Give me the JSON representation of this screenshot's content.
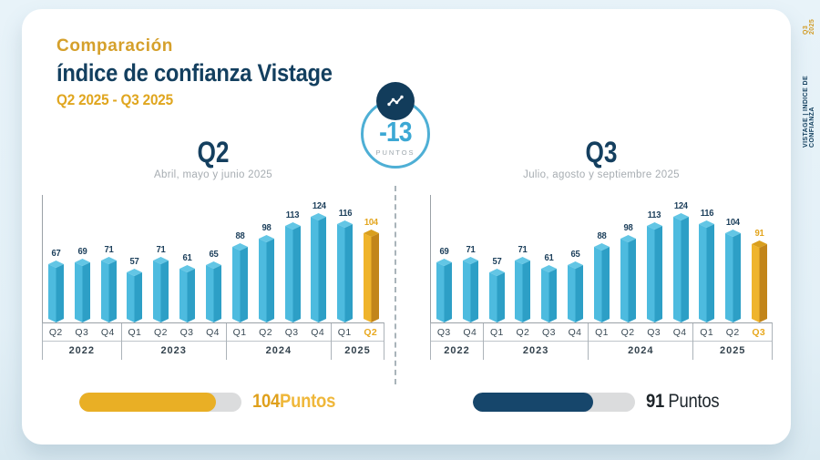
{
  "colors": {
    "background": "#E6F2F8",
    "navy": "#133F5F",
    "gold": "#E9AF25",
    "bar_blue_front": "#4DBBDF",
    "bar_blue_side": "#2D9FC6",
    "bar_blue_top": "#63C6E5",
    "bar_gold_front": "#EFB42C",
    "bar_gold_side": "#C2851A",
    "bar_gold_top": "#D99F1E",
    "badge_blue": "#3CA8D4",
    "track_gray": "#DBDCDD"
  },
  "header": {
    "kicker": "Comparación",
    "title": "índice de confianza Vistage",
    "subtitle": "Q2 2025 - Q3 2025"
  },
  "badge": {
    "delta": "-13",
    "unit": "PUNTOS",
    "icon": "trend-line-icon"
  },
  "side_label": {
    "main": "VISTAGE | INDICE DE CONFIANZA",
    "highlight": "Q3 2025"
  },
  "chart_data": [
    {
      "type": "bar",
      "title": "Q2",
      "subtitle": "Abril, mayo y junio 2025",
      "categories": [
        "Q2 2022",
        "Q3 2022",
        "Q4 2022",
        "Q1 2023",
        "Q2 2023",
        "Q3 2023",
        "Q4 2023",
        "Q1 2024",
        "Q2 2024",
        "Q3 2024",
        "Q4 2024",
        "Q1 2025",
        "Q2 2025"
      ],
      "values": [
        67,
        69,
        71,
        57,
        71,
        61,
        65,
        88,
        98,
        113,
        124,
        116,
        104
      ],
      "groups": [
        {
          "year": "2022",
          "quarters": [
            "Q2",
            "Q3",
            "Q4"
          ]
        },
        {
          "year": "2023",
          "quarters": [
            "Q1",
            "Q2",
            "Q3",
            "Q4"
          ]
        },
        {
          "year": "2024",
          "quarters": [
            "Q1",
            "Q2",
            "Q3",
            "Q4"
          ]
        },
        {
          "year": "2025",
          "quarters": [
            "Q1",
            "Q2"
          ]
        }
      ],
      "highlight_index": 12,
      "ylim": [
        0,
        130
      ],
      "grid": false,
      "summary": {
        "value": "104",
        "unit": "Puntos",
        "fill_pct": 84
      }
    },
    {
      "type": "bar",
      "title": "Q3",
      "subtitle": "Julio, agosto y septiembre 2025",
      "categories": [
        "Q3 2022",
        "Q4 2022",
        "Q1 2023",
        "Q2 2023",
        "Q3 2023",
        "Q4 2023",
        "Q1 2024",
        "Q2 2024",
        "Q3 2024",
        "Q4 2024",
        "Q1 2025",
        "Q2 2025",
        "Q3 2025"
      ],
      "values": [
        69,
        71,
        57,
        71,
        61,
        65,
        88,
        98,
        113,
        124,
        116,
        104,
        91
      ],
      "groups": [
        {
          "year": "2022",
          "quarters": [
            "Q3",
            "Q4"
          ]
        },
        {
          "year": "2023",
          "quarters": [
            "Q1",
            "Q2",
            "Q3",
            "Q4"
          ]
        },
        {
          "year": "2024",
          "quarters": [
            "Q1",
            "Q2",
            "Q3",
            "Q4"
          ]
        },
        {
          "year": "2025",
          "quarters": [
            "Q1",
            "Q2",
            "Q3"
          ]
        }
      ],
      "highlight_index": 12,
      "ylim": [
        0,
        130
      ],
      "grid": false,
      "summary": {
        "value": "91",
        "unit": "Puntos",
        "fill_pct": 74
      }
    }
  ]
}
